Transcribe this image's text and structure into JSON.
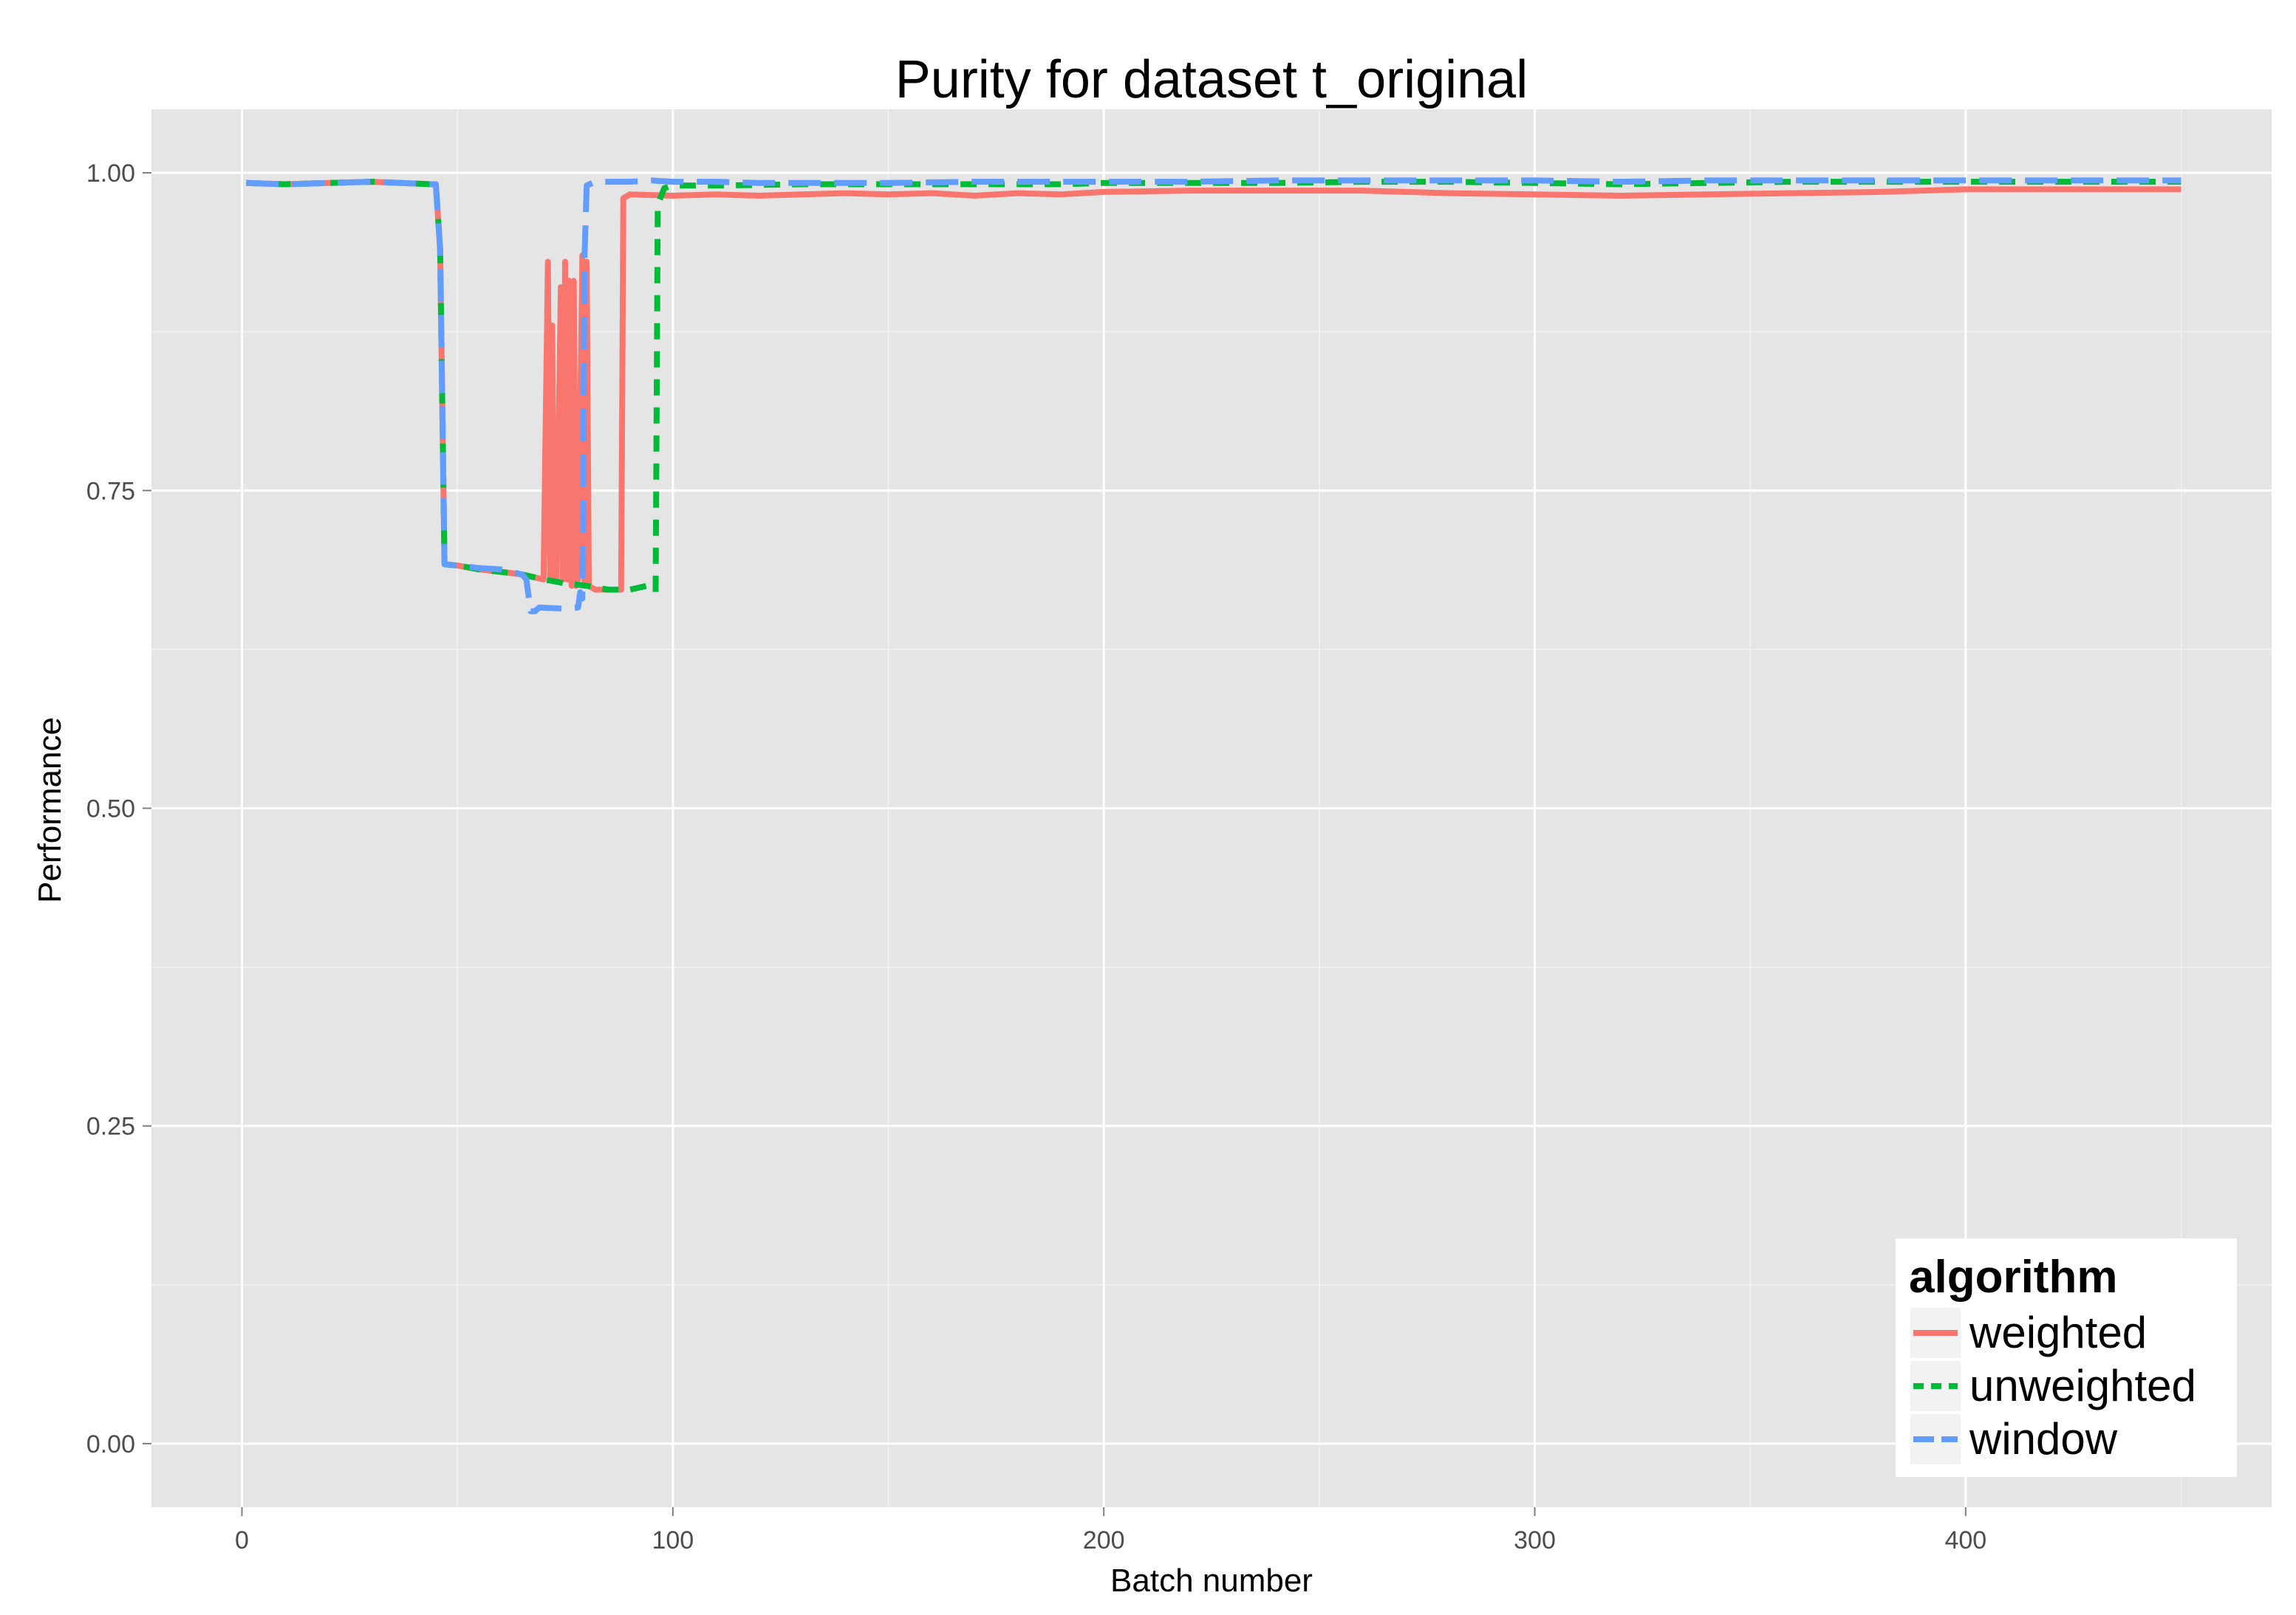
{
  "chart_data": {
    "type": "line",
    "title": "Purity for dataset t_original",
    "xlabel": "Batch number",
    "ylabel": "Performance",
    "xlim": [
      -21,
      471
    ],
    "ylim": [
      -0.05,
      1.05
    ],
    "x_ticks": [
      0,
      100,
      200,
      300,
      400
    ],
    "y_ticks": [
      0.0,
      0.25,
      0.5,
      0.75,
      1.0
    ],
    "x_tick_labels": [
      "0",
      "100",
      "200",
      "300",
      "400"
    ],
    "y_tick_labels": [
      "0.00",
      "0.25",
      "0.50",
      "0.75",
      "1.00"
    ],
    "grid": true,
    "legend": {
      "title": "algorithm",
      "position": "bottom-right"
    },
    "series": [
      {
        "name": "weighted",
        "color": "#F8766D",
        "dash": "solid",
        "points": [
          [
            1,
            0.992
          ],
          [
            10,
            0.991
          ],
          [
            20,
            0.992
          ],
          [
            30,
            0.993
          ],
          [
            44,
            0.991
          ],
          [
            45,
            0.991
          ],
          [
            46,
            0.94
          ],
          [
            47,
            0.692
          ],
          [
            50,
            0.691
          ],
          [
            55,
            0.688
          ],
          [
            60,
            0.686
          ],
          [
            65,
            0.684
          ],
          [
            70,
            0.68
          ],
          [
            71,
            0.93
          ],
          [
            71.5,
            0.68
          ],
          [
            72,
            0.88
          ],
          [
            72.5,
            0.68
          ],
          [
            73,
            0.68
          ],
          [
            74,
            0.91
          ],
          [
            74.5,
            0.68
          ],
          [
            75,
            0.93
          ],
          [
            75.5,
            0.68
          ],
          [
            76,
            0.915
          ],
          [
            76.5,
            0.675
          ],
          [
            77,
            0.915
          ],
          [
            77.5,
            0.675
          ],
          [
            78,
            0.68
          ],
          [
            79,
            0.935
          ],
          [
            79.5,
            0.675
          ],
          [
            80,
            0.93
          ],
          [
            80.5,
            0.675
          ],
          [
            82,
            0.672
          ],
          [
            88,
            0.672
          ],
          [
            88.5,
            0.98
          ],
          [
            90,
            0.983
          ],
          [
            100,
            0.982
          ],
          [
            110,
            0.983
          ],
          [
            120,
            0.982
          ],
          [
            130,
            0.983
          ],
          [
            140,
            0.984
          ],
          [
            150,
            0.983
          ],
          [
            160,
            0.984
          ],
          [
            170,
            0.982
          ],
          [
            180,
            0.984
          ],
          [
            190,
            0.983
          ],
          [
            200,
            0.985
          ],
          [
            220,
            0.986
          ],
          [
            240,
            0.986
          ],
          [
            260,
            0.986
          ],
          [
            280,
            0.984
          ],
          [
            300,
            0.983
          ],
          [
            320,
            0.982
          ],
          [
            340,
            0.983
          ],
          [
            360,
            0.984
          ],
          [
            380,
            0.985
          ],
          [
            400,
            0.987
          ],
          [
            420,
            0.987
          ],
          [
            440,
            0.987
          ],
          [
            450,
            0.987
          ]
        ]
      },
      {
        "name": "unweighted",
        "color": "#00BA38",
        "dash": "dashed",
        "points": [
          [
            1,
            0.992
          ],
          [
            10,
            0.991
          ],
          [
            20,
            0.992
          ],
          [
            30,
            0.993
          ],
          [
            44,
            0.991
          ],
          [
            45,
            0.991
          ],
          [
            46,
            0.94
          ],
          [
            47,
            0.692
          ],
          [
            50,
            0.691
          ],
          [
            55,
            0.688
          ],
          [
            60,
            0.686
          ],
          [
            65,
            0.684
          ],
          [
            70,
            0.68
          ],
          [
            75,
            0.677
          ],
          [
            80,
            0.675
          ],
          [
            85,
            0.672
          ],
          [
            90,
            0.672
          ],
          [
            94,
            0.675
          ],
          [
            96,
            0.67
          ],
          [
            96.5,
            0.975
          ],
          [
            98,
            0.988
          ],
          [
            100,
            0.99
          ],
          [
            110,
            0.99
          ],
          [
            130,
            0.991
          ],
          [
            150,
            0.991
          ],
          [
            170,
            0.991
          ],
          [
            190,
            0.991
          ],
          [
            200,
            0.992
          ],
          [
            220,
            0.992
          ],
          [
            240,
            0.992
          ],
          [
            260,
            0.993
          ],
          [
            280,
            0.993
          ],
          [
            300,
            0.992
          ],
          [
            320,
            0.991
          ],
          [
            340,
            0.992
          ],
          [
            360,
            0.993
          ],
          [
            380,
            0.993
          ],
          [
            400,
            0.993
          ],
          [
            420,
            0.993
          ],
          [
            440,
            0.993
          ],
          [
            450,
            0.993
          ]
        ]
      },
      {
        "name": "window",
        "color": "#619CFF",
        "dash": "longdash",
        "points": [
          [
            1,
            0.992
          ],
          [
            10,
            0.991
          ],
          [
            20,
            0.992
          ],
          [
            30,
            0.993
          ],
          [
            44,
            0.991
          ],
          [
            45,
            0.991
          ],
          [
            46,
            0.94
          ],
          [
            47,
            0.692
          ],
          [
            50,
            0.691
          ],
          [
            55,
            0.689
          ],
          [
            60,
            0.688
          ],
          [
            65,
            0.684
          ],
          [
            66,
            0.68
          ],
          [
            67,
            0.655
          ],
          [
            68,
            0.655
          ],
          [
            69,
            0.658
          ],
          [
            75,
            0.657
          ],
          [
            78,
            0.658
          ],
          [
            78.5,
            0.67
          ],
          [
            79,
            0.665
          ],
          [
            79.5,
            0.935
          ],
          [
            80,
            0.99
          ],
          [
            82,
            0.993
          ],
          [
            90,
            0.993
          ],
          [
            95,
            0.994
          ],
          [
            100,
            0.993
          ],
          [
            110,
            0.993
          ],
          [
            120,
            0.992
          ],
          [
            130,
            0.992
          ],
          [
            150,
            0.992
          ],
          [
            170,
            0.993
          ],
          [
            190,
            0.993
          ],
          [
            200,
            0.993
          ],
          [
            220,
            0.993
          ],
          [
            240,
            0.994
          ],
          [
            260,
            0.994
          ],
          [
            280,
            0.994
          ],
          [
            300,
            0.994
          ],
          [
            320,
            0.993
          ],
          [
            340,
            0.994
          ],
          [
            360,
            0.994
          ],
          [
            380,
            0.994
          ],
          [
            400,
            0.994
          ],
          [
            420,
            0.994
          ],
          [
            440,
            0.994
          ],
          [
            450,
            0.994
          ]
        ]
      }
    ]
  }
}
